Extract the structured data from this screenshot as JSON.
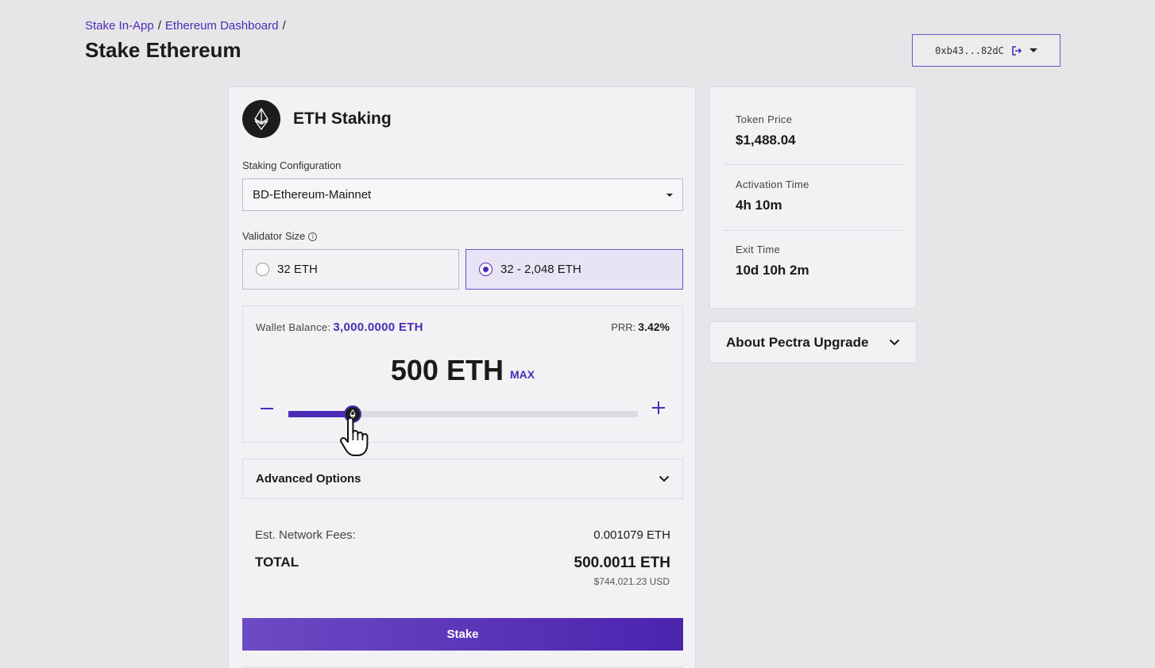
{
  "breadcrumb": {
    "items": [
      "Stake In-App",
      "Ethereum Dashboard"
    ],
    "separator": "/"
  },
  "page_title": "Stake Ethereum",
  "wallet": {
    "address": "0xb43...82dC"
  },
  "card": {
    "title": "ETH Staking",
    "config_label": "Staking Configuration",
    "config_value": "BD-Ethereum-Mainnet",
    "validator_label": "Validator Size",
    "validator_options": [
      "32 ETH",
      "32 - 2,048 ETH"
    ],
    "validator_selected": 1,
    "wallet_balance_label": "Wallet Balance:",
    "wallet_balance_value": "3,000.0000 ETH",
    "prr_label": "PRR:",
    "prr_value": "3.42%",
    "amount": "500 ETH",
    "max_label": "MAX",
    "slider_fraction": 0.184,
    "advanced_label": "Advanced Options",
    "fee_label": "Est. Network Fees:",
    "fee_value": "0.001079 ETH",
    "total_label": "TOTAL",
    "total_value": "500.0011 ETH",
    "total_usd": "$744,021.23 USD",
    "stake_label": "Stake"
  },
  "stats": [
    {
      "label": "Token Price",
      "value": "$1,488.04"
    },
    {
      "label": "Activation Time",
      "value": "4h 10m"
    },
    {
      "label": "Exit Time",
      "value": "10d 10h 2m"
    }
  ],
  "pectra_label": "About Pectra Upgrade",
  "colors": {
    "accent": "#4b2bb8",
    "background": "#e6e6e9",
    "card": "#f2f2f4"
  }
}
